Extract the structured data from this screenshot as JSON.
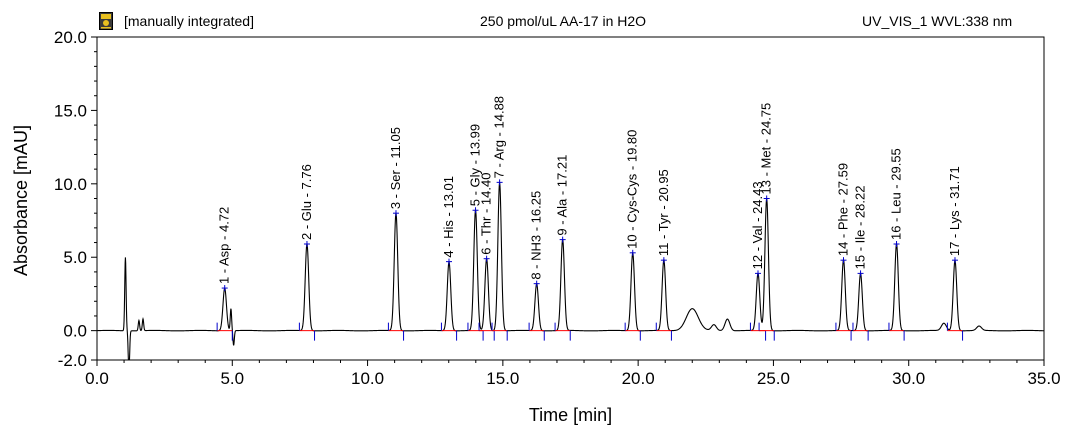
{
  "header": {
    "status": "[manually integrated]",
    "sample": "250 pmol/uL AA-17 in H2O",
    "channel": "UV_VIS_1 WVL:338 nm"
  },
  "icons": {
    "channel_icon": "chromatogram-channel-icon"
  },
  "colors": {
    "trace": "#000000",
    "baseline": "#ff0000",
    "marker": "#0000cc",
    "frame": "#000000"
  },
  "chart_data": {
    "type": "line",
    "title": "250 pmol/uL AA-17 in H2O",
    "xlabel": "Time [min]",
    "ylabel": "Absorbance [mAU]",
    "xlim": [
      0.0,
      35.0
    ],
    "ylim": [
      -2.0,
      20.0
    ],
    "xticks": [
      "0.0",
      "5.0",
      "10.0",
      "15.0",
      "20.0",
      "25.0",
      "30.0",
      "35.0"
    ],
    "yticks": [
      "-2.0",
      "0.0",
      "5.0",
      "10.0",
      "15.0",
      "20.0"
    ],
    "xtick_values": [
      0,
      5,
      10,
      15,
      20,
      25,
      30,
      35
    ],
    "ytick_values": [
      -2,
      0,
      5,
      10,
      15,
      20
    ],
    "baseline": 0.0,
    "peaks": [
      {
        "label": "1 - Asp - 4.72",
        "time": 4.72,
        "height": 2.9
      },
      {
        "label": "2 - Glu - 7.76",
        "time": 7.76,
        "height": 5.9
      },
      {
        "label": "3 - Ser - 11.05",
        "time": 11.05,
        "height": 8.0
      },
      {
        "label": "4 - His - 13.01",
        "time": 13.01,
        "height": 4.7
      },
      {
        "label": "5 - Gly - 13.99",
        "time": 13.99,
        "height": 8.2
      },
      {
        "label": "6 - Thr - 14.40",
        "time": 14.4,
        "height": 4.9
      },
      {
        "label": "7 - Arg - 14.88",
        "time": 14.88,
        "height": 10.1
      },
      {
        "label": "8 - NH3 - 16.25",
        "time": 16.25,
        "height": 3.2
      },
      {
        "label": "9 - Ala - 17.21",
        "time": 17.21,
        "height": 6.2
      },
      {
        "label": "10 - Cys-Cys - 19.80",
        "time": 19.8,
        "height": 5.3
      },
      {
        "label": "11 - Tyr - 20.95",
        "time": 20.95,
        "height": 4.8
      },
      {
        "label": "12 - Val - 24.43",
        "time": 24.43,
        "height": 3.9
      },
      {
        "label": "13 - Met - 24.75",
        "time": 24.75,
        "height": 9.0
      },
      {
        "label": "14 - Phe - 27.59",
        "time": 27.59,
        "height": 4.8
      },
      {
        "label": "15 - Ile - 28.22",
        "time": 28.22,
        "height": 3.9
      },
      {
        "label": "16 - Leu - 29.55",
        "time": 29.55,
        "height": 5.9
      },
      {
        "label": "17 - Lys - 31.71",
        "time": 31.71,
        "height": 4.8
      }
    ],
    "minor_peaks": [
      {
        "time": 22.0,
        "height": 1.5
      },
      {
        "time": 22.8,
        "height": 0.4
      },
      {
        "time": 23.3,
        "height": 0.8
      },
      {
        "time": 31.3,
        "height": 0.5
      },
      {
        "time": 32.6,
        "height": 0.3
      }
    ],
    "disturbances": [
      {
        "time": 1.05,
        "height": 5.0
      },
      {
        "time": 1.18,
        "height": -3.0
      },
      {
        "time": 1.55,
        "height": 0.7
      },
      {
        "time": 1.7,
        "height": 0.8
      },
      {
        "time": 4.95,
        "height": 1.5
      },
      {
        "time": 5.05,
        "height": -1.0
      }
    ]
  }
}
